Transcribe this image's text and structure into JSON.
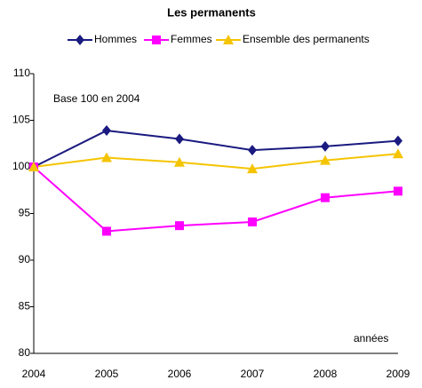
{
  "chart_data": {
    "type": "line",
    "title": "Les permanents",
    "annotations": [
      "Base 100 en 2004",
      "années"
    ],
    "categories": [
      "2004",
      "2005",
      "2006",
      "2007",
      "2008",
      "2009"
    ],
    "series": [
      {
        "name": "Hommes",
        "color": "#1a1a80",
        "marker": "diamond",
        "values": [
          100,
          103.9,
          103.0,
          101.8,
          102.2,
          102.8
        ]
      },
      {
        "name": "Femmes",
        "color": "#ff00ff",
        "marker": "square",
        "values": [
          100,
          93.1,
          93.7,
          94.1,
          96.7,
          97.4
        ]
      },
      {
        "name": "Ensemble des permanents",
        "color": "#f5c400",
        "marker": "triangle",
        "values": [
          100,
          101.0,
          100.5,
          99.8,
          100.7,
          101.4
        ]
      }
    ],
    "ylim": [
      80,
      110
    ],
    "yticks": [
      80,
      85,
      90,
      95,
      100,
      105,
      110
    ],
    "grid": false
  }
}
